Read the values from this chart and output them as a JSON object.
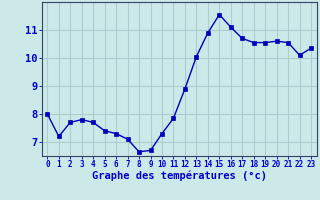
{
  "x": [
    0,
    1,
    2,
    3,
    4,
    5,
    6,
    7,
    8,
    9,
    10,
    11,
    12,
    13,
    14,
    15,
    16,
    17,
    18,
    19,
    20,
    21,
    22,
    23
  ],
  "y": [
    8.0,
    7.2,
    7.7,
    7.8,
    7.7,
    7.4,
    7.3,
    7.1,
    6.65,
    6.7,
    7.3,
    7.85,
    8.9,
    10.05,
    10.9,
    11.55,
    11.1,
    10.7,
    10.55,
    10.55,
    10.6,
    10.55,
    10.1,
    10.35
  ],
  "xlabel": "Graphe des températures (°c)",
  "background_color": "#cce8e8",
  "grid_color": "#aacece",
  "line_color": "#0000bb",
  "marker_color": "#0000bb",
  "xlabel_color": "#0000cc",
  "tick_color": "#0000cc",
  "ylim": [
    6.5,
    12.0
  ],
  "yticks": [
    7,
    8,
    9,
    10,
    11
  ],
  "xlim": [
    -0.5,
    23.5
  ]
}
